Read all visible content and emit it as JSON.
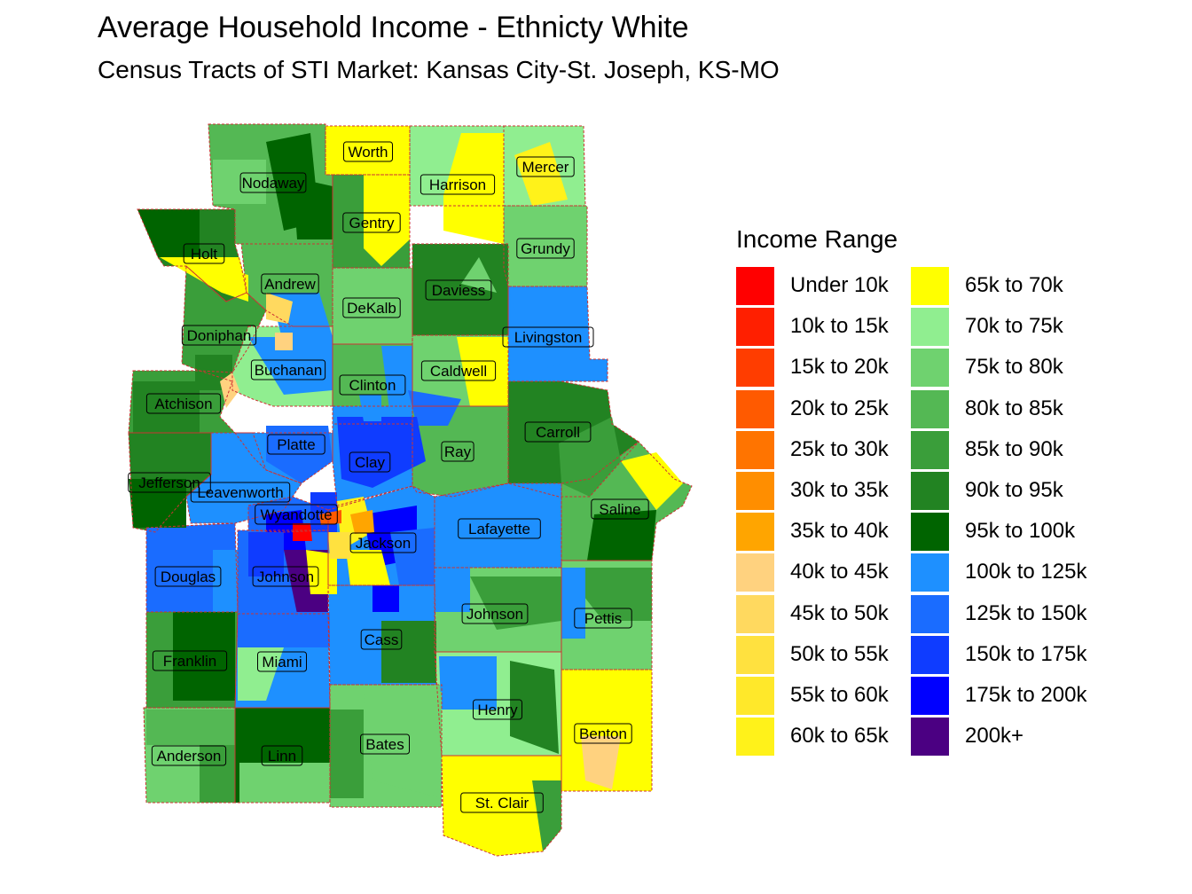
{
  "title": "Average Household Income - Ethnicty White",
  "subtitle": "Census Tracts of STI Market: Kansas City-St. Joseph, KS-MO",
  "legend": {
    "title": "Income Range",
    "items": [
      {
        "label": "Under 10k",
        "color": "#ff0000"
      },
      {
        "label": "10k to 15k",
        "color": "#ff1f00"
      },
      {
        "label": "15k to 20k",
        "color": "#ff3d00"
      },
      {
        "label": "20k to 25k",
        "color": "#ff5a00"
      },
      {
        "label": "25k to 30k",
        "color": "#ff7400"
      },
      {
        "label": "30k to 35k",
        "color": "#ff8e00"
      },
      {
        "label": "35k to 40k",
        "color": "#ffa500"
      },
      {
        "label": "40k to 45k",
        "color": "#ffd27f"
      },
      {
        "label": "45k to 50k",
        "color": "#ffd95f"
      },
      {
        "label": "50k to 55k",
        "color": "#ffe13f"
      },
      {
        "label": "55k to 60k",
        "color": "#ffe82a"
      },
      {
        "label": "60k to 65k",
        "color": "#fff21a"
      },
      {
        "label": "65k to 70k",
        "color": "#ffff00"
      },
      {
        "label": "70k to 75k",
        "color": "#90ee90"
      },
      {
        "label": "75k to 80k",
        "color": "#6fd26f"
      },
      {
        "label": "80k to 85k",
        "color": "#54b854"
      },
      {
        "label": "85k to 90k",
        "color": "#3a9e3a"
      },
      {
        "label": "90k to 95k",
        "color": "#228322"
      },
      {
        "label": "95k to 100k",
        "color": "#006400"
      },
      {
        "label": "100k to 125k",
        "color": "#1e90ff"
      },
      {
        "label": "125k to 150k",
        "color": "#1a6cff"
      },
      {
        "label": "150k to 175k",
        "color": "#0f3cff"
      },
      {
        "label": "175k to 200k",
        "color": "#0000ff"
      },
      {
        "label": "200k+",
        "color": "#4b0082"
      }
    ]
  },
  "counties": [
    {
      "name": "Worth",
      "color": "#ffff00"
    },
    {
      "name": "Harrison",
      "color": "#90ee90"
    },
    {
      "name": "Mercer",
      "color": "#90ee90"
    },
    {
      "name": "Nodaway",
      "color": "#54b854"
    },
    {
      "name": "Gentry",
      "color": "#3a9e3a"
    },
    {
      "name": "Grundy",
      "color": "#6fd26f"
    },
    {
      "name": "Holt",
      "color": "#228322"
    },
    {
      "name": "Andrew",
      "color": "#54b854"
    },
    {
      "name": "DeKalb",
      "color": "#6fd26f"
    },
    {
      "name": "Daviess",
      "color": "#228322"
    },
    {
      "name": "Livingston",
      "color": "#1e90ff"
    },
    {
      "name": "Doniphan",
      "color": "#3a9e3a"
    },
    {
      "name": "Buchanan",
      "color": "#90ee90"
    },
    {
      "name": "Clinton",
      "color": "#54b854"
    },
    {
      "name": "Caldwell",
      "color": "#6fd26f"
    },
    {
      "name": "Atchison",
      "color": "#3a9e3a"
    },
    {
      "name": "Carroll",
      "color": "#228322"
    },
    {
      "name": "Platte",
      "color": "#1e90ff"
    },
    {
      "name": "Clay",
      "color": "#1e90ff"
    },
    {
      "name": "Ray",
      "color": "#54b854"
    },
    {
      "name": "Jefferson",
      "color": "#228322"
    },
    {
      "name": "Leavenworth",
      "color": "#1e90ff"
    },
    {
      "name": "Saline",
      "color": "#54b854"
    },
    {
      "name": "Wyandotte",
      "color": "#1a6cff"
    },
    {
      "name": "Jackson",
      "color": "#1e90ff"
    },
    {
      "name": "Lafayette",
      "color": "#1e90ff"
    },
    {
      "name": "Douglas",
      "color": "#1a6cff"
    },
    {
      "name": "Johnson",
      "color": "#1a6cff"
    },
    {
      "name": "Johnson",
      "color": "#6fd26f"
    },
    {
      "name": "Pettis",
      "color": "#6fd26f"
    },
    {
      "name": "Cass",
      "color": "#1e90ff"
    },
    {
      "name": "Franklin",
      "color": "#3a9e3a"
    },
    {
      "name": "Miami",
      "color": "#1e90ff"
    },
    {
      "name": "Henry",
      "color": "#90ee90"
    },
    {
      "name": "Benton",
      "color": "#ffff00"
    },
    {
      "name": "Bates",
      "color": "#6fd26f"
    },
    {
      "name": "Anderson",
      "color": "#6fd26f"
    },
    {
      "name": "Linn",
      "color": "#006400"
    },
    {
      "name": "St. Clair",
      "color": "#ffff00"
    }
  ]
}
